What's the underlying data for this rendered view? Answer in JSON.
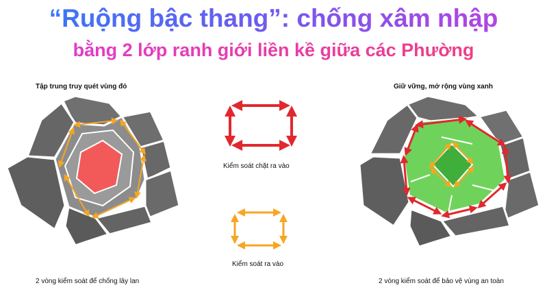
{
  "title": {
    "line1": "“Ruộng bậc thang”: chống xâm nhập",
    "line2": "bằng 2 lớp ranh giới liền kề giữa các Phường"
  },
  "left_panel": {
    "heading": "Tập trung truy quét vùng đỏ",
    "caption": "2 vòng kiểm soát để chống lây lan"
  },
  "legend": {
    "strict_label": "Kiểm soát chặt ra vào",
    "normal_label": "Kiểm soát ra vào"
  },
  "right_panel": {
    "heading": "Giữ vững, mở rộng vùng xanh",
    "caption": "2 vòng kiểm soát để bảo vệ vùng an toàn"
  },
  "colors": {
    "red_zone": "#f25a5a",
    "orange_arrow": "#f5a623",
    "red_arrow": "#e0282e",
    "light_green": "#6fd35b",
    "dark_green": "#3fae3a",
    "ward_gray": "#6e6e6e",
    "inner_gray": "#8c8c8c"
  }
}
